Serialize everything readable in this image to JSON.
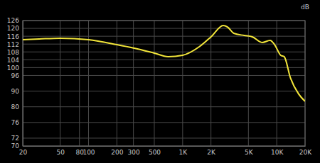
{
  "chart_data": {
    "type": "line",
    "y_label": "dB",
    "log": "x",
    "grid": true,
    "color": "#f2e53a",
    "x": [
      20,
      30,
      50,
      100,
      200,
      300,
      500,
      700,
      1000,
      1500,
      2000,
      2700,
      3000,
      3500,
      4500,
      5500,
      7000,
      8500,
      9500,
      11000,
      12000,
      14000,
      17000,
      20000
    ],
    "values": [
      114.2,
      114.6,
      115.0,
      114.2,
      111.7,
      110.0,
      107.4,
      105.6,
      106.3,
      110.6,
      115.7,
      122.2,
      121.1,
      117.5,
      116.4,
      115.7,
      112.8,
      113.9,
      111.7,
      106.3,
      105.6,
      95.0,
      88.4,
      83.5
    ],
    "xlim": [
      20,
      20000
    ],
    "xticks": [
      20,
      50,
      80,
      100,
      200,
      300,
      500,
      {
        "value": 1000,
        "label": "1K"
      },
      {
        "value": 2000,
        "label": "2K"
      },
      {
        "value": 5000,
        "label": "5K"
      },
      {
        "value": 10000,
        "label": "10K"
      },
      {
        "value": 20000,
        "label": "20K"
      }
    ],
    "ylim": [
      70,
      126
    ],
    "yticks": [
      70,
      72,
      76,
      80,
      90,
      96,
      100,
      104,
      108,
      112,
      116,
      120,
      126
    ]
  }
}
